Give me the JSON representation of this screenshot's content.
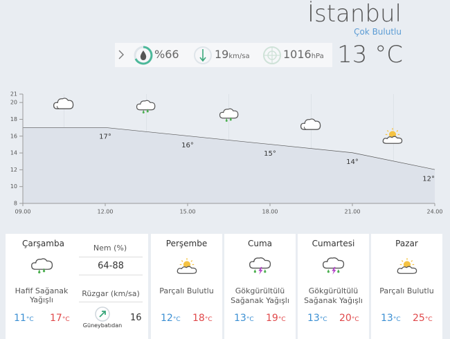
{
  "header": {
    "city": "İstanbul",
    "condition": "Çok Bulutlu",
    "humidity": "%66",
    "wind": {
      "value": 19,
      "unit": "km/sa"
    },
    "pressure": {
      "value": 1016,
      "unit": "hPa"
    },
    "temperature": 13
  },
  "temp_unit": "°C",
  "chart_data": {
    "type": "line",
    "categories": [
      "09.00",
      "12.00",
      "15.00",
      "18.00",
      "21.00",
      "24.00"
    ],
    "values": [
      17,
      17,
      16,
      15,
      14,
      12
    ],
    "value_labels": [
      null,
      "17°",
      "16°",
      "15°",
      "14°",
      "12°"
    ],
    "ylim": [
      8,
      21
    ],
    "yticks": [
      8,
      10,
      12,
      14,
      16,
      18,
      20,
      21
    ],
    "color": "#555555"
  },
  "today": {
    "day": "Çarşamba",
    "condition": "Hafif Sağanak Yağışlı",
    "min": 11,
    "max": 17,
    "humidity_label": "Nem (%)",
    "humidity": "64-88",
    "wind_label": "Rüzgar (km/sa)",
    "wind_direction": "Güneybatıdan",
    "wind_speed": 16
  },
  "forecast": [
    {
      "day": "Perşembe",
      "condition": "Parçalı Bulutlu",
      "min": 12,
      "max": 18
    },
    {
      "day": "Cuma",
      "condition": "Gökgürültülü Sağanak Yağışlı",
      "min": 13,
      "max": 19
    },
    {
      "day": "Cumartesi",
      "condition": "Gökgürültülü Sağanak Yağışlı",
      "min": 13,
      "max": 20
    },
    {
      "day": "Pazar",
      "condition": "Parçalı Bulutlu",
      "min": 13,
      "max": 25
    }
  ]
}
